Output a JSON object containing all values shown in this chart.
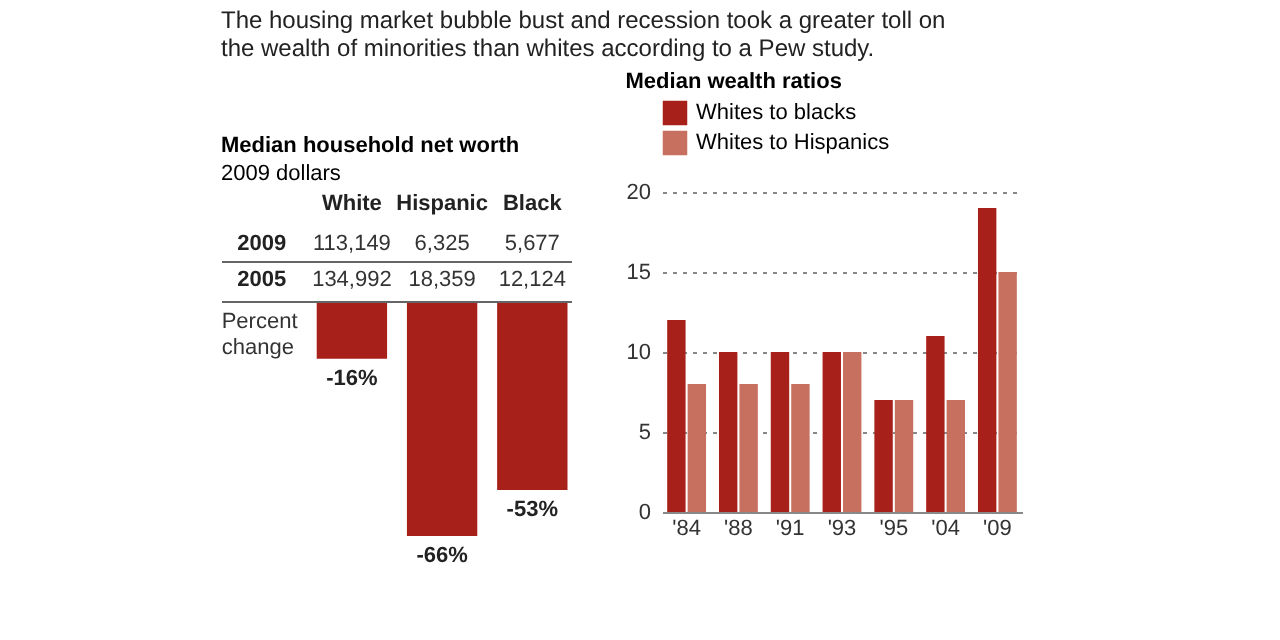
{
  "chart_data": [
    {
      "type": "bar",
      "title": "Median household net worth",
      "subtitle": "2009 dollars",
      "categories": [
        "White",
        "Hispanic",
        "Black"
      ],
      "values": [
        -16,
        -66,
        -53
      ],
      "color": "#a8201a",
      "data_labels": true,
      "value_labels": [
        "-16%",
        "-66%",
        "-53%"
      ],
      "annotations": [
        "The housing market bubble bust and recession took a greater toll on the wealth of minorities than whites according to a Pew study.",
        "Percent change",
        "2009",
        "113,149",
        "6,325",
        "5,677",
        "2005",
        "134,992",
        "18,359",
        "12,124"
      ]
    },
    {
      "type": "bar",
      "title": "Median wealth ratios",
      "categories": [
        "'84",
        "'88",
        "'91",
        "'93",
        "'95",
        "'04",
        "'09"
      ],
      "series": [
        {
          "name": "Whites to blacks",
          "color": "#a8201a",
          "values": [
            12,
            10,
            10,
            10,
            7,
            11,
            19
          ]
        },
        {
          "name": "Whites to Hispanics",
          "color": "#c87060",
          "values": [
            8,
            8,
            8,
            10,
            7,
            7,
            15
          ]
        }
      ],
      "ylim": [
        0,
        20
      ],
      "yticks": [
        0,
        5,
        10,
        15,
        20
      ],
      "grid": "y",
      "legend": "top left"
    }
  ]
}
